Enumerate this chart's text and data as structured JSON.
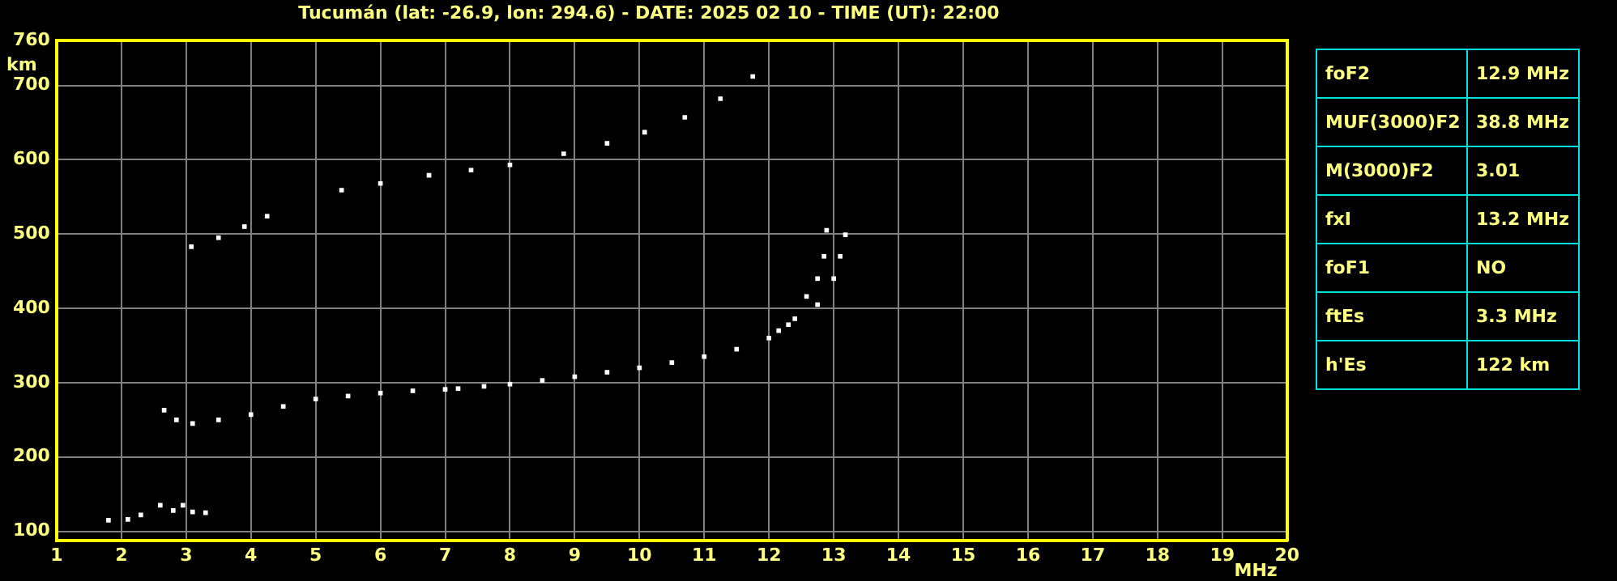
{
  "chart_data": {
    "type": "scatter",
    "title": "Tucumán (lat: -26.9, lon: 294.6) - DATE: 2025 02 10 - TIME (UT): 22:00",
    "xlabel": "MHz",
    "ylabel": "km",
    "xlim": [
      1,
      20
    ],
    "xticks": [
      1,
      2,
      3,
      4,
      5,
      6,
      7,
      8,
      9,
      10,
      11,
      12,
      13,
      14,
      15,
      16,
      17,
      18,
      19,
      20
    ],
    "ylim": [
      88,
      760
    ],
    "yticks": [
      100,
      200,
      300,
      400,
      500,
      600,
      700,
      760
    ],
    "grid": true,
    "marker": "square",
    "series": [
      {
        "color": "#ffffff",
        "x": [
          2.66,
          2.85,
          3.1,
          3.5,
          4,
          4.5,
          5,
          5.5,
          6,
          6.5,
          7,
          7.2,
          null,
          7.6,
          8,
          8.5,
          9,
          9.5,
          10,
          10.5,
          11,
          11.5,
          12,
          12.3,
          12.58,
          12.75,
          12.85,
          12.89
        ],
        "values": [
          263,
          250,
          245,
          250,
          257,
          268,
          278,
          282,
          286,
          289,
          291,
          292,
          null,
          295,
          298,
          303,
          308,
          314,
          320,
          327,
          335,
          345,
          360,
          378,
          416,
          440,
          470,
          505
        ]
      },
      {
        "color": "#ffffff",
        "x": [
          12.15,
          12.4,
          12.75,
          13.0,
          13.1,
          13.18
        ],
        "values": [
          370,
          386,
          405,
          440,
          470,
          499
        ]
      },
      {
        "color": "#ffffff",
        "x": [
          3.08,
          3.5,
          3.9,
          4.25,
          5.4,
          6.0,
          6.75,
          7.4,
          8.0,
          8.83,
          9.5,
          10.08,
          10.7,
          11.25,
          11.75
        ],
        "values": [
          483,
          495,
          510,
          524,
          559,
          568,
          579,
          586,
          593,
          608,
          622,
          637,
          657,
          682,
          712
        ]
      },
      {
        "color": "#ffffff",
        "x": [
          1.8,
          2.1,
          2.3,
          2.6,
          2.8,
          2.95,
          3.1,
          3.3
        ],
        "values": [
          115,
          116,
          122,
          135,
          128,
          135,
          126,
          125
        ]
      }
    ],
    "annotations": [
      "foF2",
      "12.9 MHz",
      "MUF(3000)F2",
      "38.8 MHz",
      "M(3000)F2",
      "3.01",
      "fxI",
      "13.2 MHz",
      "foF1",
      "NO",
      "ftEs",
      "3.3 MHz",
      "h'Es",
      "122 km"
    ]
  }
}
